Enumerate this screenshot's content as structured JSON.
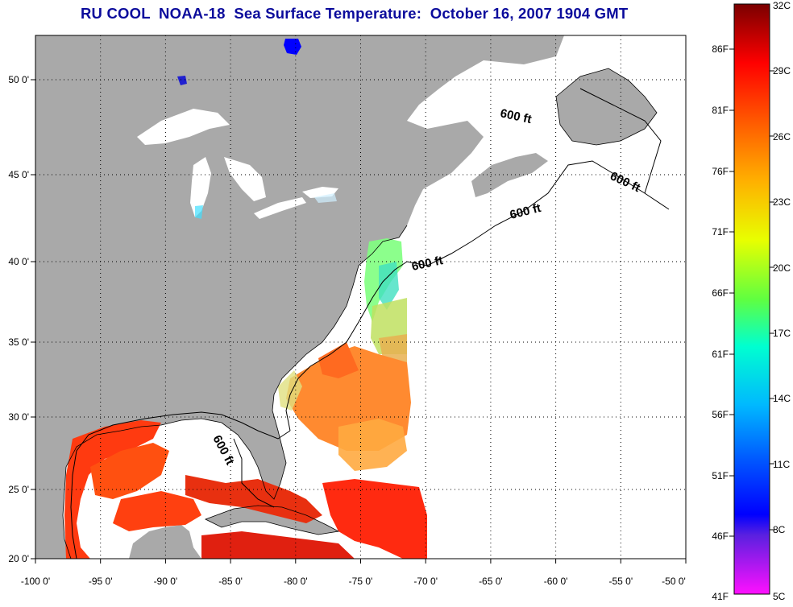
{
  "title": "RU COOL  NOAA-18  Sea Surface Temperature:  October 16, 2007 1904 GMT",
  "map": {
    "lon_ticks": [
      "-100 0'",
      "-95 0'",
      "-90 0'",
      "-85 0'",
      "-80 0'",
      "-75 0'",
      "-70 0'",
      "-65 0'",
      "-60 0'",
      "-55 0'",
      "-50 0'"
    ],
    "lat_ticks": [
      "50 0'",
      "45 0'",
      "40 0'",
      "35 0'",
      "30 0'",
      "25 0'",
      "20 0'"
    ],
    "isobath_labels": [
      "600 ft",
      "600 ft",
      "600 ft",
      "600 ft"
    ],
    "colors": {
      "land": "#a9a9a9",
      "water_nodata": "#ffffff",
      "frame": "#000000"
    }
  },
  "colorbar": {
    "celsius": [
      "32C",
      "29C",
      "26C",
      "23C",
      "20C",
      "17C",
      "14C",
      "11C",
      "8C",
      "5C"
    ],
    "fahrenheit": [
      "86F",
      "81F",
      "76F",
      "71F",
      "66F",
      "61F",
      "56F",
      "51F",
      "46F",
      "41F"
    ],
    "gradient": [
      "#800000",
      "#ff0000",
      "#ff7f00",
      "#ffff00",
      "#7fff00",
      "#00ffcc",
      "#00bfff",
      "#0066ff",
      "#0000ff",
      "#8a2be2",
      "#ff00ff"
    ]
  }
}
